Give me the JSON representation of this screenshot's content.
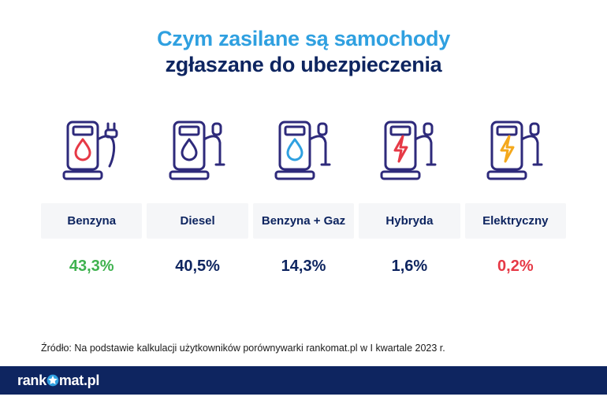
{
  "title": {
    "line1": "Czym zasilane są samochody",
    "line2": "zgłaszane do ubezpieczenia",
    "line1_color": "#2fa0e0",
    "line2_color": "#0e2560",
    "fontsize": 27
  },
  "chart": {
    "type": "infographic",
    "pump_outline_color": "#2e2a7b",
    "pump_stroke_width": 3,
    "label_bg": "#f5f6f8",
    "label_text_color": "#0e2560",
    "label_fontsize": 15,
    "value_fontsize": 20,
    "items": [
      {
        "key": "benzyna",
        "label": "Benzyna",
        "value": "43,3%",
        "value_color": "#3fb24f",
        "symbol": "drop",
        "symbol_color": "#e63946",
        "cable": true
      },
      {
        "key": "diesel",
        "label": "Diesel",
        "value": "40,5%",
        "value_color": "#0e2560",
        "symbol": "drop",
        "symbol_color": "#2e2a7b",
        "cable": false
      },
      {
        "key": "benzyna-gaz",
        "label": "Benzyna + Gaz",
        "value": "14,3%",
        "value_color": "#0e2560",
        "symbol": "drop",
        "symbol_color": "#2fa0e0",
        "cable": false
      },
      {
        "key": "hybryda",
        "label": "Hybryda",
        "value": "1,6%",
        "value_color": "#0e2560",
        "symbol": "bolt",
        "symbol_color": "#e63946",
        "cable": false
      },
      {
        "key": "elektryczny",
        "label": "Elektryczny",
        "value": "0,2%",
        "value_color": "#e63946",
        "symbol": "bolt",
        "symbol_color": "#f4a81c",
        "cable": false
      }
    ]
  },
  "source": "Źródło: Na podstawie kalkulacji użytkowników porównywarki rankomat.pl w I kwartale 2023 r.",
  "footer": {
    "brand_before": "rank",
    "brand_after": "mat.pl",
    "brand_color": "#ffffff",
    "bg": "#0e2560",
    "star_color": "#2fa0e0"
  },
  "background_color": "#ffffff"
}
